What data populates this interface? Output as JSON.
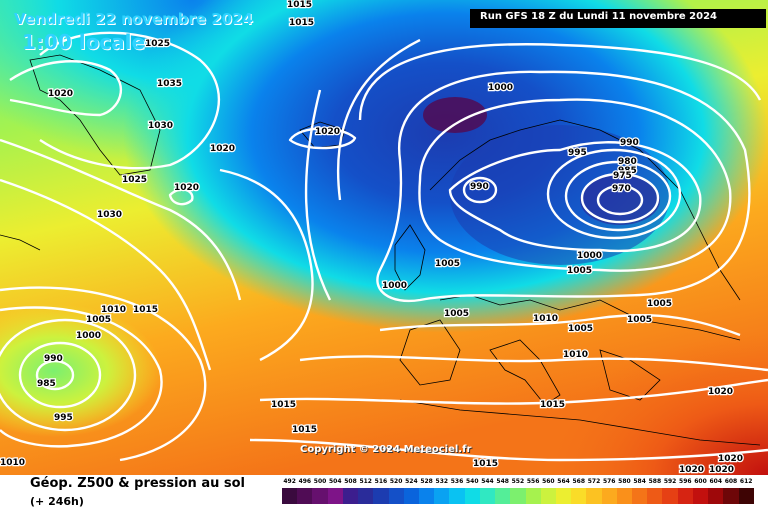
{
  "header": {
    "date": "Vendredi 22 novembre 2024",
    "time": "1:00 locale",
    "run": "Run GFS 18 Z du Lundi 11 novembre 2024"
  },
  "footer": {
    "product": "Géop. Z500 & pression au sol",
    "lead": "(+ 246h)",
    "copyright": "Copyright © 2024 Meteociel.fr"
  },
  "legend": {
    "values": [
      "492",
      "496",
      "500",
      "504",
      "508",
      "512",
      "516",
      "520",
      "524",
      "528",
      "532",
      "536",
      "540",
      "544",
      "548",
      "552",
      "556",
      "560",
      "564",
      "568",
      "572",
      "576",
      "580",
      "584",
      "588",
      "592",
      "596",
      "600",
      "604",
      "608",
      "612"
    ],
    "colors": [
      "#3a0a3e",
      "#500c55",
      "#66106e",
      "#7e1488",
      "#3c1e8e",
      "#2a2c9a",
      "#1c3cb0",
      "#1450c8",
      "#0a64dc",
      "#0a82ec",
      "#0aa2f2",
      "#0ac2f2",
      "#10dce6",
      "#30e8c2",
      "#54ee98",
      "#7cf06e",
      "#a6f24e",
      "#ccf23e",
      "#ecee30",
      "#fadc28",
      "#fcc222",
      "#fcaa1e",
      "#fa901a",
      "#f47418",
      "#ee5a16",
      "#e64014",
      "#d62412",
      "#c2100e",
      "#9e080a",
      "#6e0608",
      "#3e0404"
    ]
  },
  "map": {
    "isobar_labels": [
      "1015",
      "1025",
      "1015",
      "1020",
      "1035",
      "1030",
      "1020",
      "1020",
      "1025",
      "1020",
      "1030",
      "1010",
      "1015",
      "1005",
      "1000",
      "990",
      "985",
      "995",
      "1010",
      "1000",
      "995",
      "990",
      "985",
      "980",
      "975",
      "970",
      "990",
      "1000",
      "1005",
      "1000",
      "1005",
      "1005",
      "1010",
      "1005",
      "1005",
      "1010",
      "1005",
      "1015",
      "1015",
      "1015",
      "1015",
      "1020",
      "1020",
      "1020",
      "1020"
    ]
  }
}
